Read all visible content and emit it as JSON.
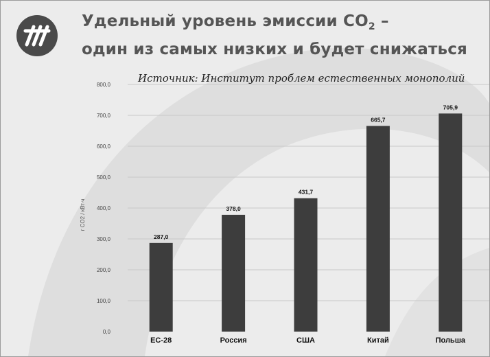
{
  "header": {
    "title_line1_pre": "Удельный уровень эмиссии CO",
    "title_sub": "2",
    "title_line1_post": " –",
    "title_line2": "один из самых низких и будет снижаться",
    "logo": "company-logo-icon"
  },
  "source": "Источник: Институт проблем естественных монополий",
  "colors": {
    "bar": "#3d3d3d",
    "background": "#ececec",
    "arc": "#d6d6d6",
    "title": "#555555"
  },
  "chart_data": {
    "type": "bar",
    "categories": [
      "ЕС-28",
      "Россия",
      "США",
      "Китай",
      "Польша"
    ],
    "values": [
      287.0,
      378.0,
      431.7,
      665.7,
      705.9
    ],
    "value_labels": [
      "287,0",
      "378,0",
      "431,7",
      "665,7",
      "705,9"
    ],
    "ylabel": "г СО2 / кВт∙ч",
    "ylim": [
      0,
      800
    ],
    "yticks": [
      0,
      100,
      200,
      300,
      400,
      500,
      600,
      700,
      800
    ],
    "ytick_labels": [
      "0,0",
      "100,0",
      "200,0",
      "300,0",
      "400,0",
      "500,0",
      "600,0",
      "700,0",
      "800,0"
    ],
    "grid": true,
    "legend": "none"
  }
}
